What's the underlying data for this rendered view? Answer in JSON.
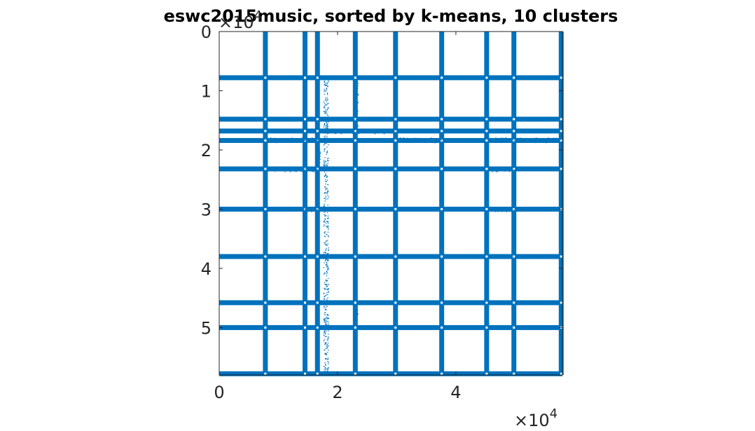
{
  "chart_data": {
    "type": "scatter",
    "subtype": "sparsity-pattern",
    "title": "eswc2015music, sorted by k-means, 10 clusters",
    "xlabel": "",
    "ylabel": "",
    "xlim": [
      0,
      58000
    ],
    "ylim": [
      0,
      58000
    ],
    "y_reversed": true,
    "x_ticks": [
      0,
      20000,
      40000
    ],
    "x_tick_labels": [
      "0",
      "2",
      "4"
    ],
    "y_ticks": [
      0,
      10000,
      20000,
      30000,
      40000,
      50000
    ],
    "y_tick_labels": [
      "0",
      "1",
      "2",
      "3",
      "4",
      "5"
    ],
    "x_exponent_label": "×10",
    "y_exponent_label": "×10",
    "exponent_power": "4",
    "color": "#0072BD",
    "solid_rows": [
      7800,
      14800,
      16800,
      18400,
      23200,
      30000,
      38000,
      45800,
      50000,
      57800
    ],
    "solid_cols": [
      7800,
      14500,
      16600,
      23000,
      29800,
      37600,
      45200,
      49800,
      57800
    ],
    "dotted_rows": [],
    "dotted_cols": [
      18000
    ],
    "sparse_segments": [
      {
        "axis": "row",
        "at": 18300,
        "from": 8000,
        "to": 16500
      },
      {
        "axis": "row",
        "at": 18300,
        "from": 30500,
        "to": 37500
      },
      {
        "axis": "row",
        "at": 18300,
        "from": 46000,
        "to": 58000
      },
      {
        "axis": "row",
        "at": 23200,
        "from": 8000,
        "to": 16500
      },
      {
        "axis": "row",
        "at": 23200,
        "from": 46000,
        "to": 50000
      },
      {
        "axis": "row",
        "at": 16800,
        "from": 18000,
        "to": 30000
      },
      {
        "axis": "row",
        "at": 30000,
        "from": 14500,
        "to": 17000
      },
      {
        "axis": "row",
        "at": 30000,
        "from": 46000,
        "to": 50000
      },
      {
        "axis": "col",
        "at": 18000,
        "from": 8000,
        "to": 58000
      },
      {
        "axis": "col",
        "at": 23000,
        "from": 8000,
        "to": 16500
      },
      {
        "axis": "col",
        "at": 23000,
        "from": 46000,
        "to": 50000
      },
      {
        "axis": "col",
        "at": 16600,
        "from": 18000,
        "to": 23500
      },
      {
        "axis": "col",
        "at": 14500,
        "from": 29000,
        "to": 31000
      }
    ]
  }
}
